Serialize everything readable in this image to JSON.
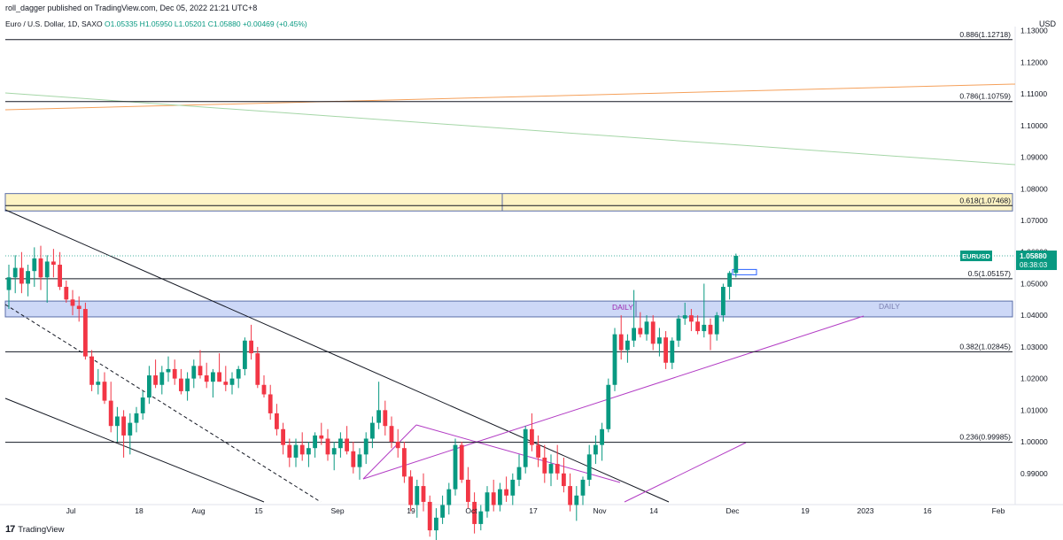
{
  "header": {
    "publisher": "roll_dagger published on TradingView.com, Dec 05, 2022 21:21 UTC+8",
    "symbol_line": "Euro / U.S. Dollar, 1D, SAXO",
    "ohlc": "O1.05335 H1.05950 L1.05201 C1.05880 +0.00469 (+0.45%)"
  },
  "currency": "USD",
  "footer": {
    "logo_text": "TradingView",
    "logo_mark": "17"
  },
  "price_tag": {
    "symbol": "EURUSD",
    "price": "1.05880",
    "countdown": "08:38:03"
  },
  "colors": {
    "up": "#089981",
    "down": "#f23645",
    "fib": "#131722",
    "orange": "#f5a05a",
    "green_line": "#a5d6a7",
    "purple": "#b23bc4",
    "zone_blue": "#cdd8f7",
    "zone_yellow": "#fdf3c4"
  },
  "chart_data": {
    "type": "candlestick",
    "symbol": "EURUSD",
    "timeframe": "1D",
    "ylim": [
      0.98,
      1.135
    ],
    "y_ticks": [
      "0.99000",
      "1.00000",
      "1.01000",
      "1.02000",
      "1.03000",
      "1.04000",
      "1.05000",
      "1.06000",
      "1.07000",
      "1.08000",
      "1.09000",
      "1.10000",
      "1.11000",
      "1.12000",
      "1.13000"
    ],
    "x_ticks": [
      "Jul",
      "18",
      "Aug",
      "15",
      "Sep",
      "19",
      "Oct",
      "17",
      "Nov",
      "14",
      "Dec",
      "19",
      "2023",
      "16",
      "Feb"
    ],
    "fib_levels": [
      {
        "ratio": "0.886",
        "label": "0.886(1.12718)",
        "price": 1.12718
      },
      {
        "ratio": "0.786",
        "label": "0.786(1.10759)",
        "price": 1.10759
      },
      {
        "ratio": "0.618",
        "label": "0.618(1.07468)",
        "price": 1.07468
      },
      {
        "ratio": "0.5",
        "label": "0.5(1.05157)",
        "price": 1.05157
      },
      {
        "ratio": "0.382",
        "label": "0.382(1.02845)",
        "price": 1.02845
      },
      {
        "ratio": "0.236",
        "label": "0.236(0.99985)",
        "price": 0.99985
      }
    ],
    "zones": [
      {
        "name": "yellow",
        "low": 1.073,
        "high": 1.0785
      },
      {
        "name": "DAILY",
        "low": 1.0395,
        "high": 1.0445,
        "labels": [
          "DAILY",
          "DAILY"
        ]
      }
    ],
    "candles": [
      [
        1.048,
        1.056,
        1.042,
        1.052
      ],
      [
        1.052,
        1.059,
        1.047,
        1.055
      ],
      [
        1.055,
        1.06,
        1.047,
        1.05
      ],
      [
        1.05,
        1.056,
        1.046,
        1.054
      ],
      [
        1.054,
        1.0615,
        1.049,
        1.058
      ],
      [
        1.058,
        1.062,
        1.048,
        1.052
      ],
      [
        1.052,
        1.059,
        1.044,
        1.057
      ],
      [
        1.057,
        1.061,
        1.052,
        1.056
      ],
      [
        1.056,
        1.06,
        1.048,
        1.049
      ],
      [
        1.049,
        1.051,
        1.044,
        1.045
      ],
      [
        1.045,
        1.048,
        1.04,
        1.043
      ],
      [
        1.043,
        1.046,
        1.038,
        1.042
      ],
      [
        1.042,
        1.044,
        1.026,
        1.027
      ],
      [
        1.027,
        1.029,
        1.016,
        1.018
      ],
      [
        1.018,
        1.023,
        1.015,
        1.019
      ],
      [
        1.019,
        1.022,
        1.012,
        1.013
      ],
      [
        1.013,
        1.019,
        1.003,
        1.005
      ],
      [
        1.005,
        1.011,
        1.0,
        1.008
      ],
      [
        1.008,
        1.01,
        0.995,
        1.002
      ],
      [
        1.002,
        1.009,
        0.996,
        1.006
      ],
      [
        1.006,
        1.011,
        1.003,
        1.009
      ],
      [
        1.009,
        1.016,
        1.007,
        1.014
      ],
      [
        1.014,
        1.024,
        1.012,
        1.021
      ],
      [
        1.021,
        1.026,
        1.017,
        1.018
      ],
      [
        1.018,
        1.024,
        1.015,
        1.022
      ],
      [
        1.022,
        1.027,
        1.019,
        1.023
      ],
      [
        1.023,
        1.026,
        1.018,
        1.02
      ],
      [
        1.02,
        1.023,
        1.015,
        1.016
      ],
      [
        1.016,
        1.022,
        1.013,
        1.02
      ],
      [
        1.02,
        1.026,
        1.017,
        1.024
      ],
      [
        1.024,
        1.029,
        1.02,
        1.021
      ],
      [
        1.021,
        1.025,
        1.017,
        1.019
      ],
      [
        1.019,
        1.023,
        1.014,
        1.022
      ],
      [
        1.022,
        1.028,
        1.019,
        1.019
      ],
      [
        1.019,
        1.024,
        1.016,
        1.018
      ],
      [
        1.018,
        1.022,
        1.015,
        1.02
      ],
      [
        1.02,
        1.024,
        1.017,
        1.023
      ],
      [
        1.023,
        1.033,
        1.021,
        1.032
      ],
      [
        1.032,
        1.037,
        1.026,
        1.028
      ],
      [
        1.028,
        1.03,
        1.017,
        1.018
      ],
      [
        1.018,
        1.021,
        1.014,
        1.015
      ],
      [
        1.015,
        1.018,
        1.007,
        1.009
      ],
      [
        1.009,
        1.012,
        1.002,
        1.004
      ],
      [
        1.004,
        1.006,
        0.996,
        0.999
      ],
      [
        0.999,
        1.001,
        0.992,
        0.995
      ],
      [
        0.995,
        1.001,
        0.992,
        0.999
      ],
      [
        0.999,
        1.003,
        0.994,
        0.996
      ],
      [
        0.996,
        1.0,
        0.992,
        0.998
      ],
      [
        0.998,
        1.003,
        0.995,
        1.002
      ],
      [
        1.002,
        1.006,
        0.999,
        1.001
      ],
      [
        1.001,
        1.004,
        0.994,
        0.996
      ],
      [
        0.996,
        1.0,
        0.991,
        0.998
      ],
      [
        0.998,
        1.003,
        0.995,
        1.001
      ],
      [
        1.001,
        1.005,
        0.996,
        0.997
      ],
      [
        0.997,
        1.0,
        0.99,
        0.992
      ],
      [
        0.992,
        0.998,
        0.988,
        0.996
      ],
      [
        0.996,
        1.003,
        0.993,
        1.001
      ],
      [
        1.001,
        1.008,
        0.998,
        1.006
      ],
      [
        1.006,
        1.019,
        1.004,
        1.01
      ],
      [
        1.01,
        1.013,
        1.002,
        1.005
      ],
      [
        1.005,
        1.008,
        0.998,
        1.0
      ],
      [
        1.0,
        1.004,
        0.995,
        0.998
      ],
      [
        0.998,
        1.0,
        0.987,
        0.989
      ],
      [
        0.989,
        0.991,
        0.978,
        0.98
      ],
      [
        0.98,
        0.988,
        0.976,
        0.986
      ],
      [
        0.986,
        0.99,
        0.978,
        0.981
      ],
      [
        0.981,
        0.983,
        0.97,
        0.972
      ],
      [
        0.972,
        0.979,
        0.968,
        0.976
      ],
      [
        0.976,
        0.983,
        0.974,
        0.98
      ],
      [
        0.98,
        0.987,
        0.977,
        0.985
      ],
      [
        0.985,
        1.001,
        0.983,
        0.999
      ],
      [
        0.999,
        1.0,
        0.987,
        0.988
      ],
      [
        0.988,
        0.992,
        0.979,
        0.981
      ],
      [
        0.981,
        0.984,
        0.971,
        0.974
      ],
      [
        0.974,
        0.98,
        0.972,
        0.978
      ],
      [
        0.978,
        0.986,
        0.976,
        0.984
      ],
      [
        0.984,
        0.988,
        0.978,
        0.98
      ],
      [
        0.98,
        0.987,
        0.978,
        0.985
      ],
      [
        0.985,
        0.989,
        0.981,
        0.983
      ],
      [
        0.983,
        0.99,
        0.98,
        0.988
      ],
      [
        0.988,
        0.996,
        0.986,
        0.992
      ],
      [
        0.992,
        1.005,
        0.99,
        1.004
      ],
      [
        1.004,
        1.009,
        0.997,
        0.999
      ],
      [
        0.999,
        1.002,
        0.992,
        0.995
      ],
      [
        0.995,
        0.999,
        0.987,
        0.99
      ],
      [
        0.99,
        0.996,
        0.986,
        0.993
      ],
      [
        0.993,
        0.999,
        0.988,
        0.99
      ],
      [
        0.99,
        0.995,
        0.984,
        0.986
      ],
      [
        0.986,
        0.99,
        0.978,
        0.98
      ],
      [
        0.98,
        0.986,
        0.975,
        0.983
      ],
      [
        0.983,
        0.989,
        0.98,
        0.988
      ],
      [
        0.988,
        0.999,
        0.986,
        0.996
      ],
      [
        0.996,
        1.002,
        0.993,
        0.999
      ],
      [
        0.999,
        1.006,
        0.994,
        1.004
      ],
      [
        1.004,
        1.02,
        1.003,
        1.018
      ],
      [
        1.018,
        1.036,
        1.016,
        1.034
      ],
      [
        1.034,
        1.04,
        1.026,
        1.029
      ],
      [
        1.029,
        1.034,
        1.025,
        1.032
      ],
      [
        1.032,
        1.048,
        1.03,
        1.036
      ],
      [
        1.036,
        1.041,
        1.033,
        1.034
      ],
      [
        1.034,
        1.04,
        1.032,
        1.038
      ],
      [
        1.038,
        1.04,
        1.029,
        1.031
      ],
      [
        1.031,
        1.036,
        1.027,
        1.033
      ],
      [
        1.033,
        1.035,
        1.023,
        1.025
      ],
      [
        1.025,
        1.033,
        1.023,
        1.032
      ],
      [
        1.032,
        1.04,
        1.03,
        1.039
      ],
      [
        1.039,
        1.044,
        1.037,
        1.04
      ],
      [
        1.04,
        1.042,
        1.035,
        1.038
      ],
      [
        1.038,
        1.04,
        1.034,
        1.035
      ],
      [
        1.035,
        1.05,
        1.033,
        1.037
      ],
      [
        1.037,
        1.039,
        1.029,
        1.034
      ],
      [
        1.034,
        1.041,
        1.032,
        1.04
      ],
      [
        1.04,
        1.05,
        1.038,
        1.049
      ],
      [
        1.049,
        1.054,
        1.045,
        1.0534
      ],
      [
        1.0534,
        1.0595,
        1.052,
        1.0588
      ]
    ]
  }
}
